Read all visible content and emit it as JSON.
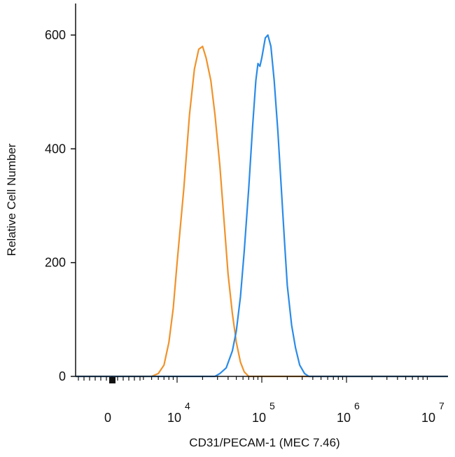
{
  "chart_data": {
    "type": "line",
    "title": "",
    "xlabel": "CD31/PECAM-1 (MEC 7.46)",
    "ylabel": "Relative Cell Number",
    "x_scale": "log",
    "x_ticks": [
      {
        "value": 0,
        "base": "0",
        "exp": ""
      },
      {
        "value": 10000,
        "base": "10",
        "exp": "4"
      },
      {
        "value": 100000,
        "base": "10",
        "exp": "5"
      },
      {
        "value": 1000000,
        "base": "10",
        "exp": "6"
      },
      {
        "value": 10000000,
        "base": "10",
        "exp": "7"
      }
    ],
    "y_ticks": [
      0,
      200,
      400,
      600
    ],
    "ylim": [
      0,
      650
    ],
    "grid": false,
    "legend": "none",
    "series": [
      {
        "color": "#f0922a",
        "points": [
          [
            5000,
            0
          ],
          [
            6000,
            5
          ],
          [
            7000,
            20
          ],
          [
            8000,
            60
          ],
          [
            9000,
            120
          ],
          [
            10000,
            200
          ],
          [
            12000,
            330
          ],
          [
            14000,
            460
          ],
          [
            16000,
            540
          ],
          [
            18000,
            575
          ],
          [
            20000,
            580
          ],
          [
            22000,
            560
          ],
          [
            25000,
            520
          ],
          [
            28000,
            460
          ],
          [
            32000,
            370
          ],
          [
            36000,
            270
          ],
          [
            40000,
            180
          ],
          [
            45000,
            110
          ],
          [
            50000,
            60
          ],
          [
            56000,
            25
          ],
          [
            62000,
            8
          ],
          [
            70000,
            0
          ]
        ]
      },
      {
        "color": "#2a8be8",
        "points": [
          [
            28000,
            0
          ],
          [
            32000,
            5
          ],
          [
            38000,
            15
          ],
          [
            45000,
            45
          ],
          [
            50000,
            80
          ],
          [
            56000,
            140
          ],
          [
            62000,
            220
          ],
          [
            70000,
            330
          ],
          [
            78000,
            440
          ],
          [
            85000,
            520
          ],
          [
            90000,
            550
          ],
          [
            95000,
            545
          ],
          [
            100000,
            560
          ],
          [
            110000,
            595
          ],
          [
            118000,
            600
          ],
          [
            128000,
            580
          ],
          [
            140000,
            520
          ],
          [
            155000,
            430
          ],
          [
            170000,
            330
          ],
          [
            185000,
            240
          ],
          [
            200000,
            160
          ],
          [
            225000,
            90
          ],
          [
            250000,
            50
          ],
          [
            280000,
            20
          ],
          [
            320000,
            5
          ],
          [
            360000,
            0
          ]
        ]
      }
    ]
  }
}
